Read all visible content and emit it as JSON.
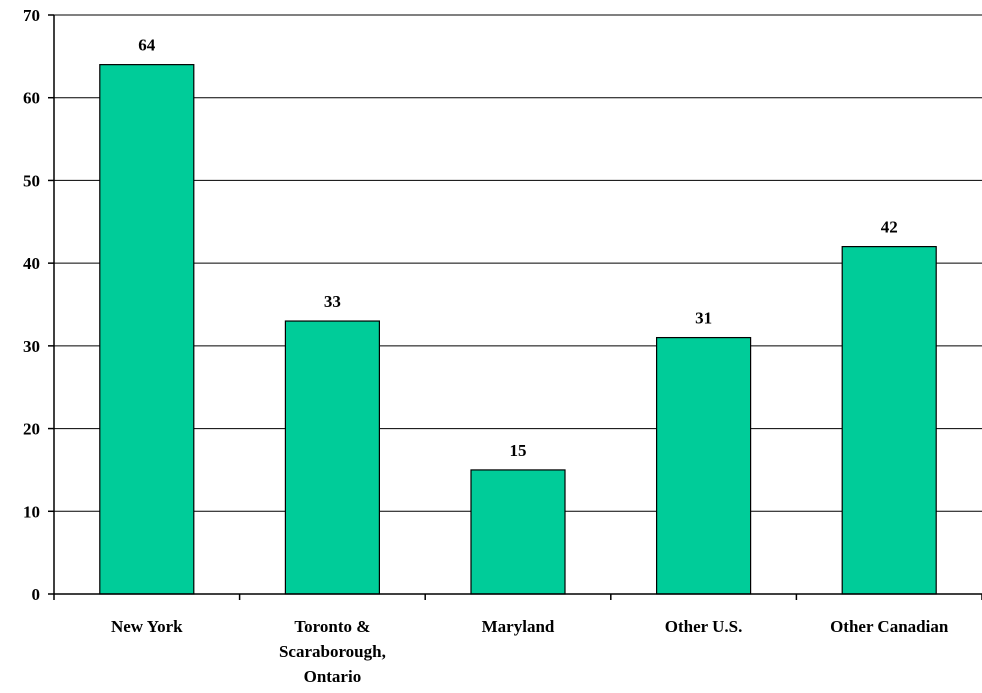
{
  "chart_data": {
    "type": "bar",
    "title": "",
    "xlabel": "",
    "ylabel": "",
    "categories": [
      [
        "New York"
      ],
      [
        "Toronto &",
        "Scaraborough,",
        "Ontario"
      ],
      [
        "Maryland"
      ],
      [
        "Other U.S."
      ],
      [
        "Other Canadian"
      ]
    ],
    "values": [
      64,
      33,
      15,
      31,
      42
    ],
    "data_labels": [
      "64",
      "33",
      "15",
      "31",
      "42"
    ],
    "ylim": [
      0,
      70
    ],
    "yticks": [
      "0",
      "10",
      "20",
      "30",
      "40",
      "50",
      "60",
      "70"
    ],
    "grid": true,
    "legend": "none",
    "bar_color": "#00CC99",
    "bar_edge_color": "#000000"
  }
}
